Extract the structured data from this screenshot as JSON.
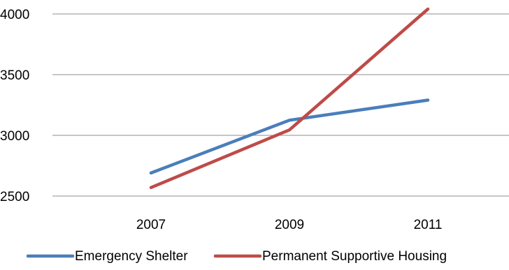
{
  "chart_data": {
    "type": "line",
    "title": "",
    "xlabel": "",
    "ylabel": "",
    "categories": [
      "2007",
      "2009",
      "2011"
    ],
    "ylim": [
      2500,
      4000
    ],
    "yticks": [
      "2500",
      "3000",
      "3500",
      "4000"
    ],
    "grid": true,
    "legend": "bottom",
    "series": [
      {
        "name": "Emergency Shelter",
        "color": "#4a7ebb",
        "values": [
          2690,
          3125,
          3290
        ]
      },
      {
        "name": "Permanent Supportive Housing",
        "color": "#be4b48",
        "values": [
          2570,
          3045,
          4040
        ]
      }
    ]
  }
}
